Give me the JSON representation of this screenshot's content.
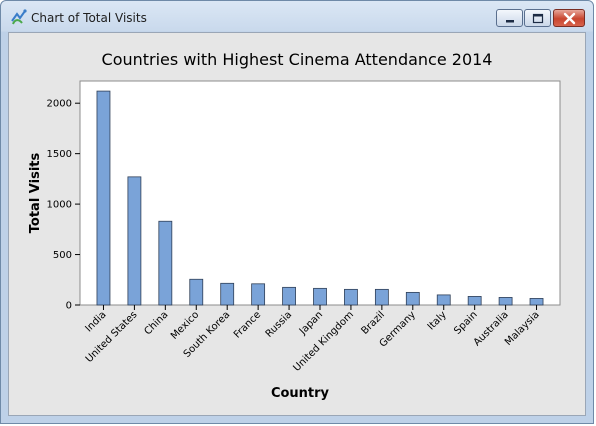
{
  "window": {
    "title": "Chart of Total Visits",
    "icon": "minitab-chart-icon",
    "controls": [
      "minimize",
      "maximize",
      "close"
    ]
  },
  "colors": {
    "bar_fill": "#7aa3d8",
    "bar_stroke": "#2f3f57",
    "plot_background": "#ffffff",
    "chart_background": "#e6e6e6"
  },
  "chart_data": {
    "type": "bar",
    "title": "Countries with Highest Cinema Attendance 2014",
    "xlabel": "Country",
    "ylabel": "Total Visits",
    "categories": [
      "India",
      "United States",
      "China",
      "Mexico",
      "South Korea",
      "France",
      "Russia",
      "Japan",
      "United Kingdom",
      "Brazil",
      "Germany",
      "Italy",
      "Spain",
      "Australia",
      "Malaysia"
    ],
    "values": [
      2120,
      1270,
      830,
      255,
      215,
      210,
      175,
      165,
      155,
      155,
      125,
      100,
      85,
      75,
      65
    ],
    "ylim": [
      0,
      2220
    ],
    "yticks": [
      0,
      500,
      1000,
      1500,
      2000
    ],
    "grid": false,
    "legend": "none"
  }
}
